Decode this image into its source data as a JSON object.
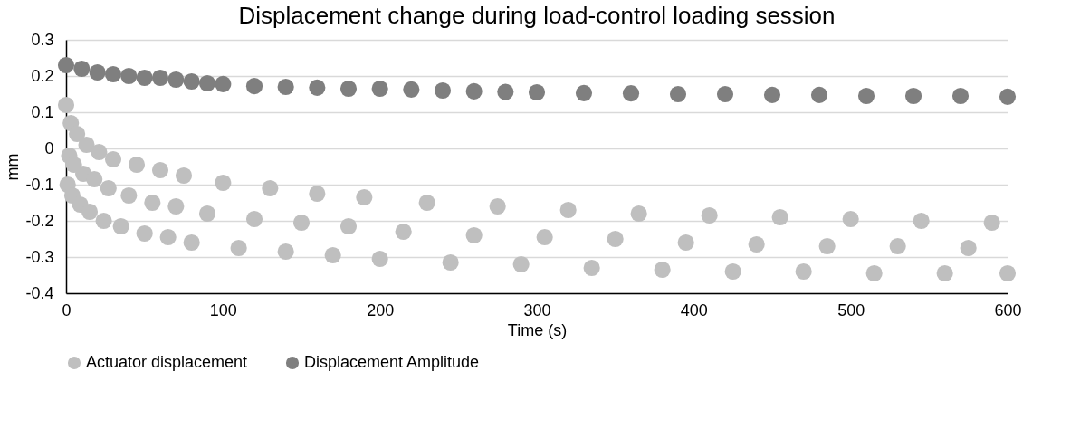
{
  "chart_data": {
    "type": "scatter",
    "title": "Displacement change during load-control loading session",
    "xlabel": "Time (s)",
    "ylabel": "mm",
    "xlim": [
      0,
      600
    ],
    "xticks": [
      0,
      100,
      200,
      300,
      400,
      500,
      600
    ],
    "ylim": [
      -0.4,
      0.3
    ],
    "yticks": [
      -0.4,
      -0.3,
      -0.2,
      -0.1,
      0,
      0.1,
      0.2,
      0.3
    ],
    "grid": "y",
    "legend": "bottom",
    "marker": "circle",
    "series": [
      {
        "name": "Actuator displacement",
        "color": "#bfbfbf",
        "x": [
          0,
          1,
          2,
          3,
          4,
          5,
          7,
          9,
          11,
          13,
          15,
          18,
          21,
          24,
          27,
          30,
          35,
          40,
          45,
          50,
          55,
          60,
          65,
          70,
          75,
          80,
          90,
          100,
          110,
          120,
          130,
          140,
          150,
          160,
          170,
          180,
          190,
          200,
          215,
          230,
          245,
          260,
          275,
          290,
          305,
          320,
          335,
          350,
          365,
          380,
          395,
          410,
          425,
          440,
          455,
          470,
          485,
          500,
          515,
          530,
          545,
          560,
          575,
          590,
          600
        ],
        "values": [
          0.12,
          -0.1,
          -0.02,
          0.07,
          -0.13,
          -0.045,
          0.04,
          -0.155,
          -0.07,
          0.01,
          -0.175,
          -0.085,
          -0.01,
          -0.2,
          -0.11,
          -0.03,
          -0.215,
          -0.13,
          -0.045,
          -0.235,
          -0.15,
          -0.06,
          -0.245,
          -0.16,
          -0.075,
          -0.26,
          -0.18,
          -0.095,
          -0.275,
          -0.195,
          -0.11,
          -0.285,
          -0.205,
          -0.125,
          -0.295,
          -0.215,
          -0.135,
          -0.305,
          -0.23,
          -0.15,
          -0.315,
          -0.24,
          -0.16,
          -0.32,
          -0.245,
          -0.17,
          -0.33,
          -0.25,
          -0.18,
          -0.335,
          -0.26,
          -0.185,
          -0.34,
          -0.265,
          -0.19,
          -0.34,
          -0.27,
          -0.195,
          -0.345,
          -0.27,
          -0.2,
          -0.345,
          -0.275,
          -0.205,
          -0.345
        ]
      },
      {
        "name": "Displacement Amplitude",
        "color": "#7f7f7f",
        "x": [
          0,
          10,
          20,
          30,
          40,
          50,
          60,
          70,
          80,
          90,
          100,
          120,
          140,
          160,
          180,
          200,
          220,
          240,
          260,
          280,
          300,
          330,
          360,
          390,
          420,
          450,
          480,
          510,
          540,
          570,
          600
        ],
        "values": [
          0.23,
          0.22,
          0.21,
          0.205,
          0.2,
          0.195,
          0.195,
          0.19,
          0.185,
          0.18,
          0.178,
          0.172,
          0.17,
          0.168,
          0.165,
          0.165,
          0.163,
          0.16,
          0.158,
          0.156,
          0.155,
          0.153,
          0.152,
          0.15,
          0.15,
          0.148,
          0.148,
          0.145,
          0.145,
          0.145,
          0.143
        ]
      }
    ]
  }
}
